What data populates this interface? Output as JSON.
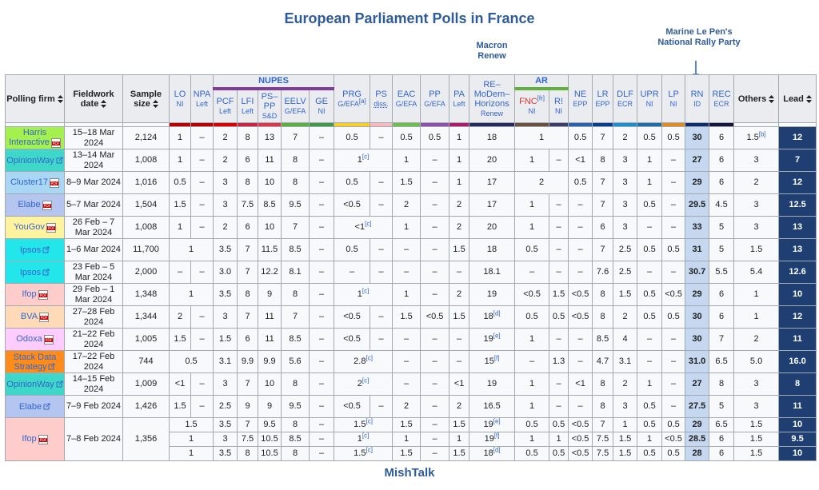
{
  "title": "European Parliament Polls in France",
  "macron_note": "Macron Renew",
  "rn_note": "Marine Le Pen's National Rally Party",
  "footer": "MishTalk",
  "table": {
    "groups": [
      {
        "label": "NUPES",
        "color": "#7d3c98"
      },
      {
        "label": "AR",
        "color": "#5fae3e"
      }
    ],
    "columns": [
      {
        "label": "Polling firm"
      },
      {
        "label": "Fieldwork date"
      },
      {
        "label": "Sample size"
      },
      {
        "label": "LO",
        "sub": "NI",
        "color": "#bb0000"
      },
      {
        "label": "NPA",
        "sub": "Left",
        "color": "#bb0000"
      },
      {
        "label": "PCF",
        "sub": "Left",
        "color": "#dd0000"
      },
      {
        "label": "LFI",
        "sub": "Left",
        "color": "#cc2443"
      },
      {
        "label": "PS–PP",
        "sub": "S&D",
        "color": "#e0364b"
      },
      {
        "label": "EELV",
        "sub": "G/EFA",
        "color": "#5cb040"
      },
      {
        "label": "GE",
        "sub": "NI",
        "color": "#3e9a4a"
      },
      {
        "label": "PRG",
        "sub": "G/EFA",
        "sub_note": "[a]",
        "color": "#f5cf2a"
      },
      {
        "label": "PS",
        "sub": "diss.",
        "color": "#f7b9c0"
      },
      {
        "label": "EAC",
        "sub": "G/EFA",
        "color": "#6dbf4b"
      },
      {
        "label": "PP",
        "sub": "G/EFA",
        "color": "#8e4fb0"
      },
      {
        "label": "PA",
        "sub": "Left",
        "color": "#b0186a"
      },
      {
        "label": "RE–MoDem–Horizons",
        "sub": "Renew",
        "color": "#262a5e"
      },
      {
        "label": "FNC",
        "label_note": "[fr]",
        "sub": "NI",
        "color": "#6b5040"
      },
      {
        "label": "R!",
        "sub": "NI",
        "color": "#3c3c6a"
      },
      {
        "label": "NE",
        "sub": "EPP",
        "color": "#2a62b0"
      },
      {
        "label": "LR",
        "sub": "EPP",
        "color": "#0a3d91"
      },
      {
        "label": "DLF",
        "sub": "ECR",
        "color": "#1a8fd0"
      },
      {
        "label": "UPR",
        "sub": "NI",
        "color": "#1b6fa8"
      },
      {
        "label": "LP",
        "sub": "NI",
        "color": "#e08a20"
      },
      {
        "label": "RN",
        "sub": "ID",
        "color": "#0d2e6b"
      },
      {
        "label": "REC",
        "sub": "ECR",
        "color": "#15153d"
      },
      {
        "label": "Others"
      },
      {
        "label": "Lead"
      }
    ],
    "rows": [
      {
        "firm": "Harris Interactive",
        "color": "#a3f04e",
        "date": "15–18 Mar 2024",
        "size": "2,124",
        "cells": [
          "1",
          "–",
          "2",
          "8",
          "13",
          "7",
          "–",
          "0.5",
          "–",
          "0.5",
          "0.5",
          "1",
          "18",
          "1",
          "0.5",
          "7",
          "2",
          "0.5",
          "0.5",
          "30",
          "6",
          {
            "value": "1.5",
            "note": "[b]"
          },
          "12"
        ]
      },
      {
        "firm": "OpinionWay",
        "color": "#3fd7c9",
        "date": "13–14 Mar 2024",
        "size": "1,008",
        "cells": [
          "1",
          "–",
          "2",
          "6",
          "11",
          "8",
          "–",
          {
            "value": "1",
            "note": "[c]"
          },
          "1",
          "–",
          "1",
          "20",
          "1",
          "–",
          "<1",
          "8",
          "3",
          "1",
          "–",
          "27",
          "6",
          "3",
          "7"
        ]
      },
      {
        "firm": "Cluster17",
        "color": "#a9d6f2",
        "date": "8–9 Mar 2024",
        "size": "1,016",
        "cells": [
          "0.5",
          "–",
          "3",
          "8",
          "10",
          "8",
          "–",
          "0.5",
          "–",
          "1.5",
          "–",
          "1",
          "17",
          "2",
          "0.5",
          "7",
          "3",
          "1",
          "–",
          "29",
          "6",
          "2",
          "12"
        ]
      },
      {
        "firm": "Elabe",
        "color": "#b4c6f0",
        "date": "5–7 Mar 2024",
        "size": "1,504",
        "cells": [
          "1.5",
          "–",
          "3",
          "7.5",
          "8.5",
          "9.5",
          "–",
          "<0.5",
          "–",
          "2",
          "–",
          "2",
          "17",
          "1",
          "–",
          "–",
          "7",
          "3",
          "0.5",
          "–",
          "29.5",
          "4.5",
          "3",
          "12.5"
        ]
      },
      {
        "firm": "YouGov",
        "color": "#fff3a0",
        "date": "26 Feb – 7 Mar 2024",
        "size": "1,008",
        "cells": [
          "1",
          "–",
          "2",
          "6",
          "10",
          "7",
          "–",
          {
            "value": "<1",
            "note": "[c]"
          },
          "1",
          "–",
          "2",
          "20",
          "1",
          "–",
          "–",
          "6",
          "3",
          "–",
          "–",
          "33",
          "5",
          "3",
          "13"
        ]
      },
      {
        "firm": "Ipsos",
        "color": "#22e6ea",
        "date": "1–6 Mar 2024",
        "size": "11,700",
        "cells": [
          "1",
          "3.5",
          "7",
          "11.5",
          "8.5",
          "–",
          "0.5",
          "–",
          "–",
          "–",
          "1.5",
          "18",
          "0.5",
          "–",
          "–",
          "7",
          "2.5",
          "0.5",
          "0.5",
          "31",
          "5",
          "1.5",
          "13"
        ]
      },
      {
        "firm": "Ipsos",
        "color": "#22e6ea",
        "date": "23 Feb – 5 Mar 2024",
        "size": "2,000",
        "cells": [
          "–",
          "–",
          "3.0",
          "7",
          "12.2",
          "8.1",
          "–",
          "–",
          "–",
          "–",
          "–",
          "–",
          "18.1",
          "–",
          "–",
          "–",
          "7.6",
          "2.5",
          "–",
          "–",
          "30.7",
          "5.5",
          "5.4",
          "12.6"
        ]
      },
      {
        "firm": "Ifop",
        "color": "#ffcccc",
        "date": "29 Feb – 1 Mar 2024",
        "size": "1,348",
        "cells": [
          "1",
          "3.5",
          "8",
          "9",
          "8",
          "–",
          {
            "value": "1",
            "note": "[c]"
          },
          "1",
          "–",
          "2",
          "19",
          "<0.5",
          "1.5",
          "<0.5",
          "8",
          "1.5",
          "0.5",
          "<0.5",
          "29",
          "6",
          "1",
          "10"
        ]
      },
      {
        "firm": "BVA",
        "color": "#ffdab9",
        "date": "27–28 Feb 2024",
        "size": "1,344",
        "cells": [
          "2",
          "–",
          "3",
          "7",
          "11",
          "7",
          "–",
          "<0.5",
          "–",
          "1.5",
          "<0.5",
          "1.5",
          {
            "value": "18",
            "note": "[d]"
          },
          "0.5",
          "0.5",
          "<0.5",
          "8",
          "2",
          "0.5",
          "0.5",
          "30",
          "6",
          "1",
          "12"
        ]
      },
      {
        "firm": "Odoxa",
        "color": "#ffccff",
        "date": "21–22 Feb 2024",
        "size": "1,005",
        "cells": [
          "1.5",
          "–",
          "1.5",
          "6",
          "11",
          "8.5",
          "–",
          "<0.5",
          "–",
          "–",
          "–",
          "–",
          {
            "value": "19",
            "note": "[e]"
          },
          "1",
          "–",
          "–",
          "8.5",
          "4",
          "–",
          "–",
          "30",
          "7",
          "2",
          "11"
        ]
      },
      {
        "firm": "Stack Data Strategy",
        "color": "#ff8c1a",
        "date": "17–22 Feb 2024",
        "size": "744",
        "cells": [
          "0.5",
          "3.1",
          "9.9",
          "9.9",
          "5.6",
          "–",
          {
            "value": "2.8",
            "note": "[c]"
          },
          "–",
          "–",
          "–",
          {
            "value": "15",
            "note": "[f]"
          },
          "–",
          "1.3",
          "–",
          "4.7",
          "3.1",
          "–",
          "–",
          "31.0",
          "6.5",
          "5.0",
          "16.0"
        ]
      },
      {
        "firm": "OpinionWay",
        "color": "#3fd7c9",
        "date": "14–15 Feb 2024",
        "size": "1,009",
        "cells": [
          "<1",
          "–",
          "3",
          "7",
          "10",
          "8",
          "–",
          {
            "value": "2",
            "note": "[c]"
          },
          "–",
          "–",
          "<1",
          "19",
          "1",
          "–",
          "<1",
          "8",
          "2",
          "1",
          "–",
          "27",
          "8",
          "3",
          "8"
        ]
      },
      {
        "firm": "Elabe",
        "color": "#b4c6f0",
        "date": "7–9 Feb 2024",
        "size": "1,426",
        "cells": [
          "1.5",
          "–",
          "2.5",
          "9",
          "9",
          "9.5",
          "–",
          "<0.5",
          "–",
          "2",
          "–",
          "2",
          "16.5",
          "1",
          "–",
          "–",
          "8",
          "3",
          "0.5",
          "–",
          "27.5",
          "5",
          "3",
          "11"
        ]
      },
      {
        "firm": "Ifop",
        "color": "#ffcccc",
        "date": "7–8 Feb 2024",
        "size": "1,356",
        "cells": [
          "1.5",
          "3.5",
          "7",
          "9.5",
          "8",
          "–",
          {
            "value": "1.5",
            "note": "[c]"
          },
          "1.5",
          "–",
          "1.5",
          {
            "value": "19",
            "note": "[e]"
          },
          "0.5",
          "0.5",
          "<0.5",
          "7",
          "1",
          "0.5",
          "0.5",
          "29",
          "6.5",
          "1.5",
          "10"
        ]
      },
      {
        "cells": [
          "1",
          "3",
          "7.5",
          "10.5",
          "8.5",
          "–",
          {
            "value": "1",
            "note": "[c]"
          },
          "1",
          "–",
          "1",
          {
            "value": "19",
            "note": "[f]"
          },
          "1",
          "1",
          "<0.5",
          "7.5",
          "1.5",
          "1",
          "<0.5",
          "28.5",
          "6",
          "1.5",
          "9.5"
        ]
      },
      {
        "cells": [
          "1",
          "3.5",
          "8",
          "10.5",
          "8",
          "–",
          {
            "value": "1.5",
            "note": "[c]"
          },
          "1.5",
          "–",
          "1.5",
          {
            "value": "18",
            "note": "[d]"
          },
          "0.5",
          "0.5",
          "<0.5",
          "7.5",
          "1.5",
          "0.5",
          "0.5",
          "28",
          "6",
          "1.5",
          "10"
        ]
      }
    ]
  }
}
